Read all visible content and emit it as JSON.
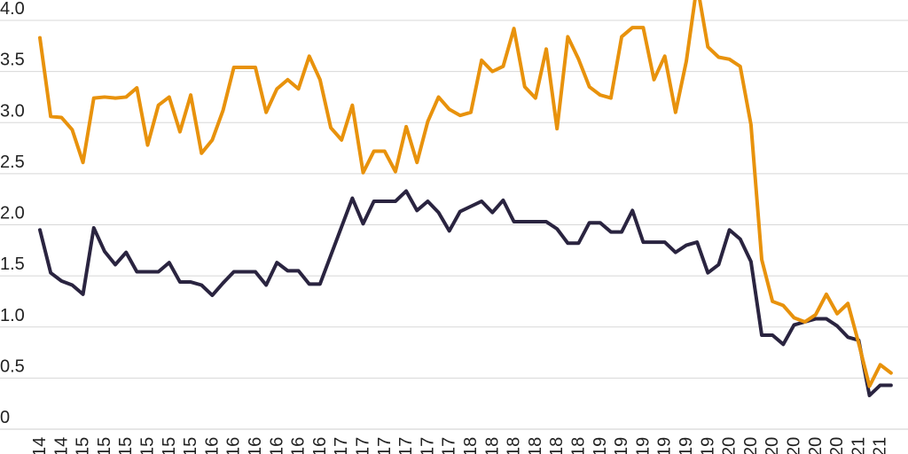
{
  "chart_data": {
    "type": "line",
    "title": "",
    "legend": "none",
    "grid": "horizontal",
    "y_axis": {
      "tick_values": [
        0,
        0.5,
        1.0,
        1.5,
        2.0,
        2.5,
        3.0,
        3.5,
        4.0
      ],
      "tick_labels": [
        "0",
        "0.5",
        "1.0",
        "1.5",
        "2.0",
        "2.5",
        "3.0",
        "3.5",
        "4.0"
      ],
      "range": [
        0,
        4.2
      ]
    },
    "x_axis": {
      "tick_labels": [
        "14",
        "14",
        "15",
        "15",
        "15",
        "15",
        "15",
        "15",
        "16",
        "16",
        "16",
        "16",
        "16",
        "16",
        "17",
        "17",
        "17",
        "17",
        "17",
        "17",
        "18",
        "18",
        "18",
        "18",
        "18",
        "18",
        "19",
        "19",
        "19",
        "19",
        "19",
        "19",
        "20",
        "20",
        "20",
        "20",
        "20",
        "20",
        "21",
        "21"
      ],
      "ticks_every_n_points": 2,
      "labels_rotated_degrees": -90,
      "labels_clipped_at_bottom": true
    },
    "series": [
      {
        "name": "orange-series",
        "color": "#E8920C",
        "values": [
          3.83,
          3.06,
          3.05,
          2.93,
          2.61,
          3.24,
          3.25,
          3.24,
          3.25,
          3.34,
          2.78,
          3.17,
          3.25,
          2.91,
          3.27,
          2.7,
          2.83,
          3.12,
          3.54,
          3.54,
          3.54,
          3.1,
          3.33,
          3.42,
          3.33,
          3.65,
          3.42,
          2.95,
          2.83,
          3.17,
          2.51,
          2.72,
          2.72,
          2.52,
          2.96,
          2.61,
          3.01,
          3.25,
          3.13,
          3.07,
          3.1,
          3.61,
          3.5,
          3.55,
          3.92,
          3.35,
          3.24,
          3.72,
          2.94,
          3.84,
          3.62,
          3.35,
          3.27,
          3.24,
          3.84,
          3.93,
          3.93,
          3.42,
          3.65,
          3.1,
          3.6,
          4.35,
          3.74,
          3.64,
          3.62,
          3.55,
          2.98,
          1.66,
          1.25,
          1.21,
          1.09,
          1.05,
          1.12,
          1.32,
          1.13,
          1.23,
          0.84,
          0.42,
          0.63,
          0.55
        ]
      },
      {
        "name": "dark-series",
        "color": "#2A2440",
        "values": [
          1.95,
          1.53,
          1.45,
          1.41,
          1.32,
          1.97,
          1.74,
          1.61,
          1.73,
          1.54,
          1.54,
          1.54,
          1.63,
          1.44,
          1.44,
          1.41,
          1.31,
          1.43,
          1.54,
          1.54,
          1.54,
          1.41,
          1.63,
          1.55,
          1.55,
          1.42,
          1.42,
          1.7,
          1.98,
          2.26,
          2.01,
          2.23,
          2.23,
          2.23,
          2.33,
          2.14,
          2.23,
          2.12,
          1.94,
          2.13,
          2.18,
          2.23,
          2.12,
          2.24,
          2.03,
          2.03,
          2.03,
          2.03,
          1.96,
          1.82,
          1.82,
          2.02,
          2.02,
          1.93,
          1.93,
          2.14,
          1.83,
          1.83,
          1.83,
          1.73,
          1.8,
          1.83,
          1.53,
          1.61,
          1.95,
          1.86,
          1.64,
          0.92,
          0.92,
          0.83,
          1.02,
          1.05,
          1.08,
          1.08,
          1.01,
          0.9,
          0.87,
          0.33,
          0.43,
          0.43
        ]
      }
    ]
  },
  "colors": {
    "background": "#FFFFFF",
    "gridline": "#D8D8D8",
    "baseline": "#CCCCCC",
    "tick_text": "#222222",
    "orange_series": "#E8920C",
    "dark_series": "#2A2440"
  }
}
